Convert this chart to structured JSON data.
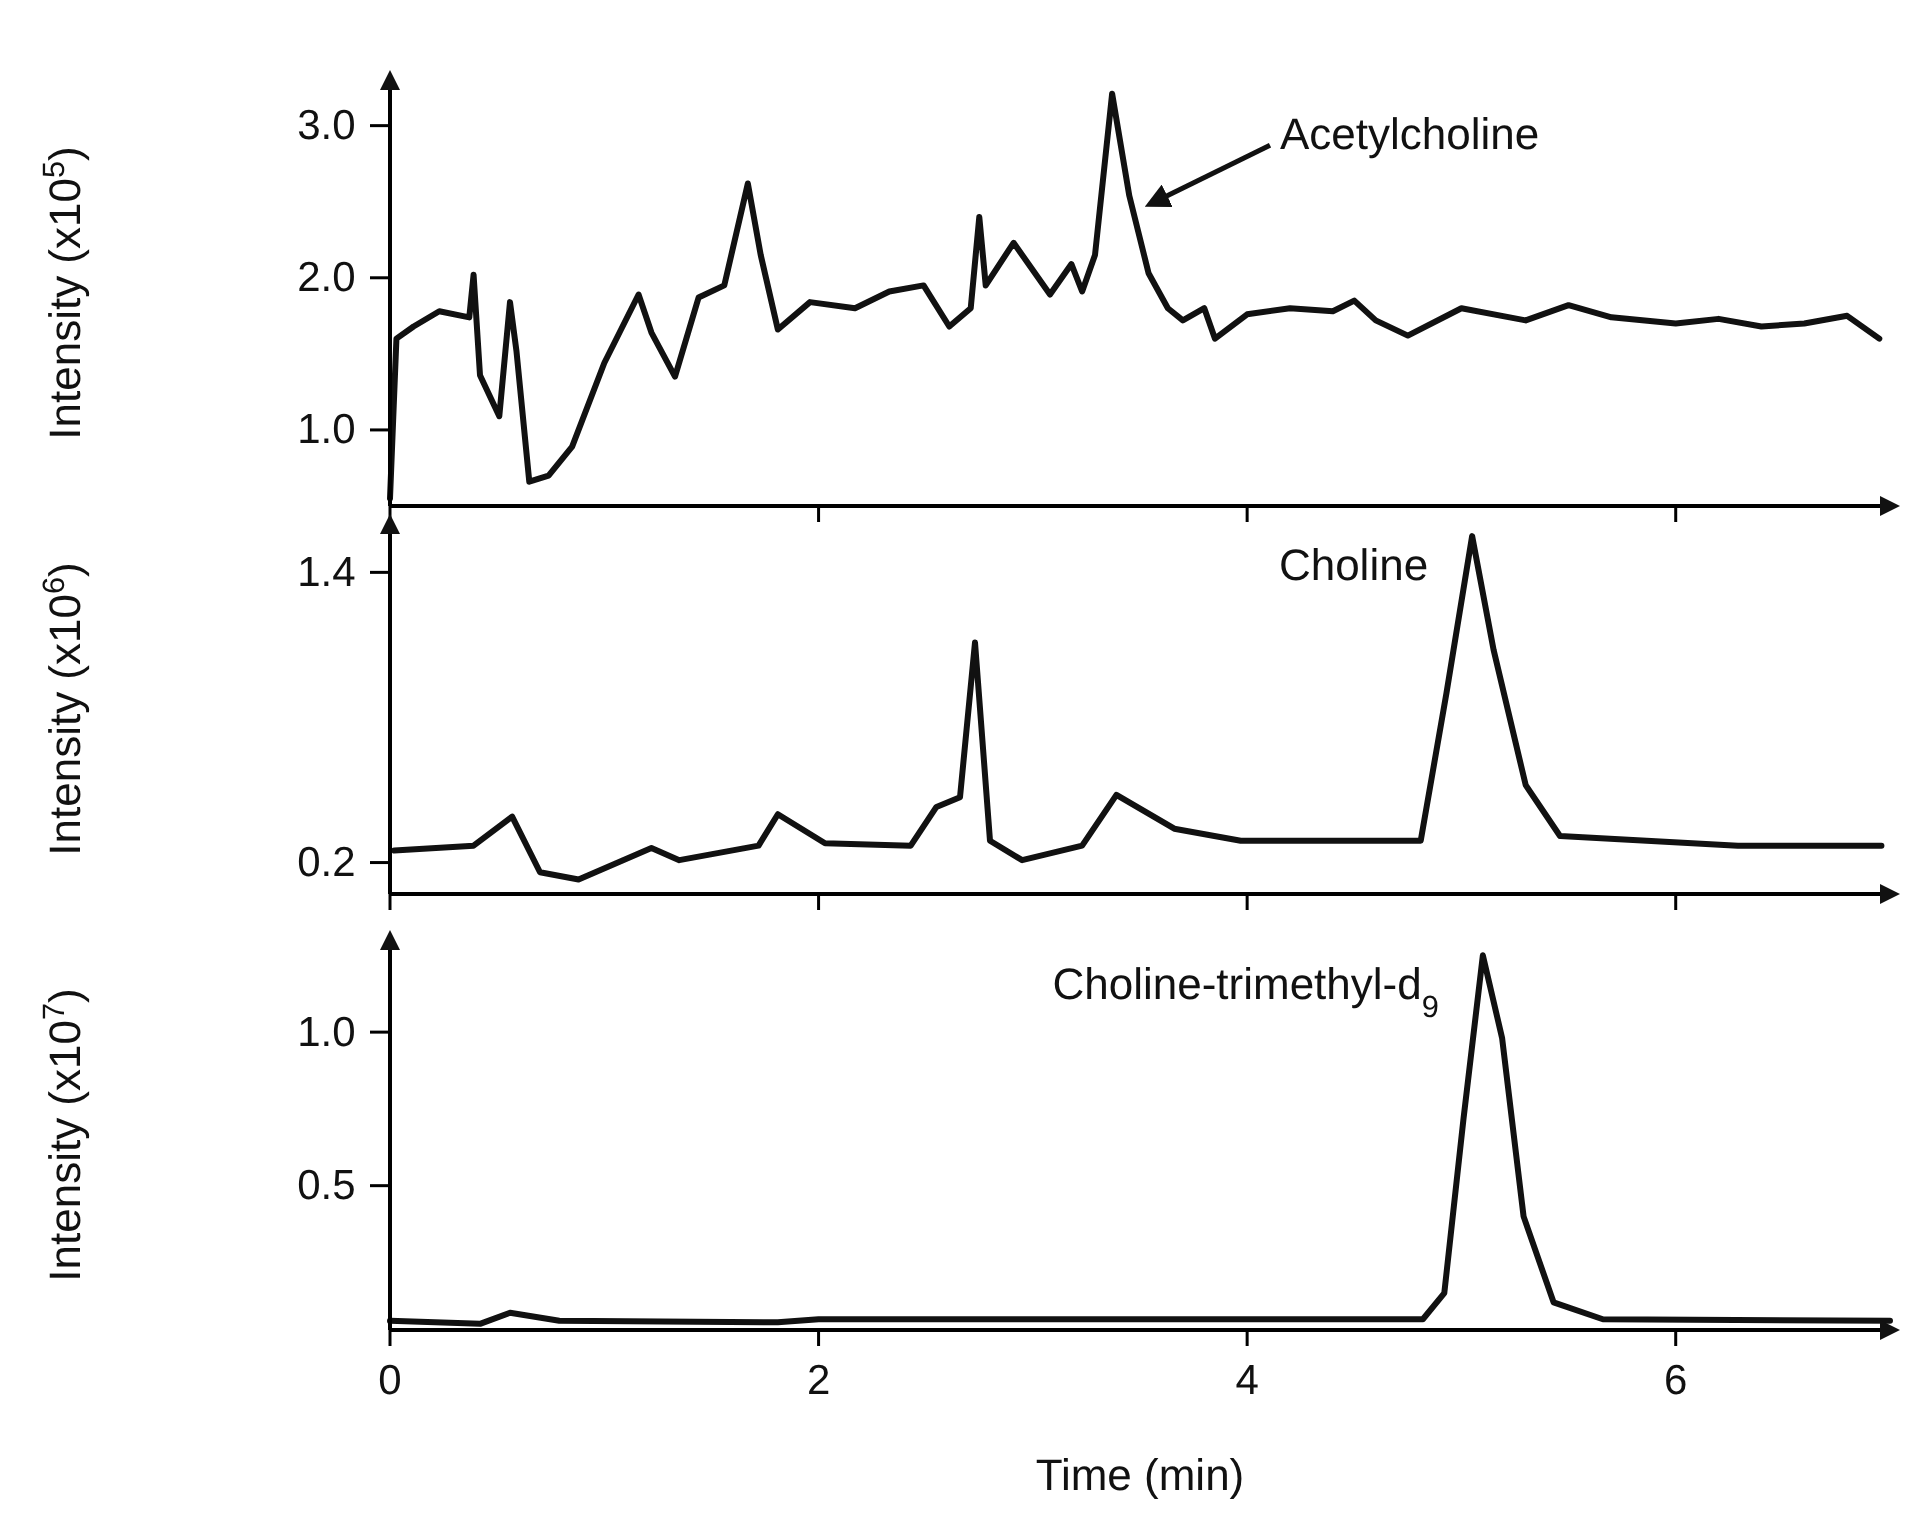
{
  "chart_data": [
    {
      "type": "line",
      "ylabel": "Intensity (x10$^{5}$)",
      "xlim": [
        0,
        7
      ],
      "xticks": [
        0,
        2,
        4,
        6
      ],
      "ylim": [
        0.5,
        3.3
      ],
      "yticks": [
        {
          "value": 1,
          "label": "1.0"
        },
        {
          "value": 2,
          "label": "2.0"
        },
        {
          "value": 3,
          "label": "3.0"
        }
      ],
      "tick_labels": "y",
      "grid": false,
      "annotations": [
        {
          "text": "Acetylcholine",
          "x": 3.5,
          "y": 2.45
        }
      ],
      "series": [
        {
          "color": "#111111",
          "x": [
            0,
            0.03,
            0.11,
            0.23,
            0.37,
            0.39,
            0.42,
            0.51,
            0.56,
            0.59,
            0.65,
            0.74,
            0.85,
            1.0,
            1.16,
            1.22,
            1.33,
            1.44,
            1.56,
            1.67,
            1.73,
            1.81,
            1.96,
            2.17,
            2.33,
            2.49,
            2.61,
            2.71,
            2.75,
            2.78,
            2.91,
            3.08,
            3.18,
            3.23,
            3.29,
            3.37,
            3.45,
            3.54,
            3.63,
            3.7,
            3.8,
            3.85,
            4.0,
            4.2,
            4.4,
            4.5,
            4.6,
            4.75,
            5.0,
            5.3,
            5.5,
            5.7,
            6.0,
            6.2,
            6.4,
            6.6,
            6.8,
            6.95
          ],
          "values": [
            0.55,
            1.6,
            1.68,
            1.78,
            1.74,
            2.02,
            1.36,
            1.09,
            1.84,
            1.52,
            0.66,
            0.7,
            0.89,
            1.44,
            1.89,
            1.64,
            1.35,
            1.87,
            1.95,
            2.62,
            2.15,
            1.66,
            1.84,
            1.8,
            1.91,
            1.95,
            1.68,
            1.8,
            2.4,
            1.95,
            2.23,
            1.89,
            2.09,
            1.91,
            2.15,
            3.21,
            2.54,
            2.03,
            1.8,
            1.72,
            1.8,
            1.6,
            1.76,
            1.8,
            1.78,
            1.85,
            1.72,
            1.62,
            1.8,
            1.72,
            1.82,
            1.74,
            1.7,
            1.73,
            1.68,
            1.7,
            1.75,
            1.6
          ]
        }
      ]
    },
    {
      "type": "line",
      "ylabel": "Intensity (x10$^{6}$)",
      "xlim": [
        0,
        7
      ],
      "xticks": [
        0,
        2,
        4,
        6
      ],
      "ylim": [
        0.07,
        1.6
      ],
      "yticks": [
        0.2,
        1.4
      ],
      "tick_labels": "y",
      "grid": false,
      "annotations": [
        {
          "text": "Choline",
          "x": 5.05,
          "y": 1.55
        }
      ],
      "series": [
        {
          "color": "#111111",
          "x": [
            0.02,
            0.39,
            0.57,
            0.7,
            0.88,
            1.22,
            1.35,
            1.72,
            1.81,
            2.03,
            2.43,
            2.55,
            2.66,
            2.73,
            2.8,
            2.95,
            3.23,
            3.39,
            3.66,
            3.97,
            4.81,
            4.93,
            5.05,
            5.15,
            5.3,
            5.46,
            6.29,
            6.96
          ],
          "values": [
            0.25,
            0.27,
            0.39,
            0.16,
            0.13,
            0.26,
            0.21,
            0.27,
            0.4,
            0.28,
            0.27,
            0.43,
            0.47,
            1.11,
            0.29,
            0.21,
            0.27,
            0.48,
            0.34,
            0.29,
            0.29,
            0.9,
            1.55,
            1.08,
            0.52,
            0.31,
            0.27,
            0.27
          ]
        }
      ]
    },
    {
      "type": "line",
      "xlabel": "Time (min)",
      "ylabel": "Intensity (x10$^{7}$)",
      "xlim": [
        0,
        7
      ],
      "xticks": [
        0,
        2,
        4,
        6
      ],
      "ylim": [
        0.03,
        1.3
      ],
      "yticks": [
        0.5,
        {
          "value": 1,
          "label": "1.0"
        }
      ],
      "grid": false,
      "annotations": [
        {
          "text": "Choline-trimethyl-d$_{9}$",
          "x": 5.1,
          "y": 1.25
        }
      ],
      "series": [
        {
          "color": "#111111",
          "x": [
            0,
            0.42,
            0.56,
            0.79,
            1.81,
            2.0,
            4.82,
            4.92,
            5.01,
            5.1,
            5.19,
            5.29,
            5.43,
            5.66,
            7.0
          ],
          "values": [
            0.06,
            0.05,
            0.086,
            0.06,
            0.055,
            0.065,
            0.065,
            0.15,
            0.72,
            1.25,
            0.98,
            0.4,
            0.12,
            0.065,
            0.06
          ]
        }
      ]
    }
  ]
}
